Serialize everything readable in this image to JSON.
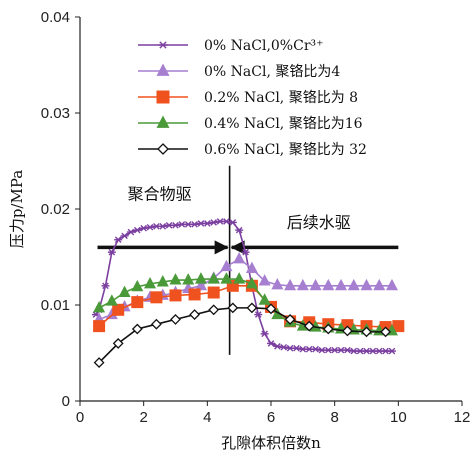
{
  "chart_data": {
    "type": "line",
    "xlabel": "孔隙体积倍数n",
    "ylabel": "压力p/MPa",
    "xlim": [
      0,
      12
    ],
    "ylim": [
      0,
      0.04
    ],
    "xticks": [
      "0",
      "2",
      "4",
      "6",
      "8",
      "10",
      "12"
    ],
    "yticks": [
      "0",
      "0.01",
      "0.02",
      "0.03",
      "0.04"
    ],
    "grid": false,
    "legend_position": "top-right",
    "series": [
      {
        "name": "0% NaCl,0%Cr³⁺",
        "color": "#7b3fa0",
        "marker": "star",
        "x": [
          0.5,
          0.6,
          0.8,
          1.0,
          1.2,
          1.4,
          1.6,
          1.8,
          2.0,
          2.2,
          2.4,
          2.6,
          2.8,
          3.0,
          3.2,
          3.4,
          3.6,
          3.8,
          4.0,
          4.2,
          4.4,
          4.6,
          4.8,
          5.0,
          5.2,
          5.4,
          5.6,
          5.8,
          6.0,
          6.2,
          6.4,
          6.6,
          6.8,
          7.0,
          7.2,
          7.4,
          7.6,
          7.8,
          8.0,
          8.2,
          8.4,
          8.6,
          8.8,
          9.0,
          9.2,
          9.4,
          9.6,
          9.8
        ],
        "y": [
          0.009,
          0.0095,
          0.012,
          0.0155,
          0.0168,
          0.0172,
          0.0176,
          0.0178,
          0.018,
          0.0181,
          0.0182,
          0.0182,
          0.0183,
          0.0183,
          0.0184,
          0.0184,
          0.0184,
          0.0185,
          0.0185,
          0.0186,
          0.0187,
          0.0187,
          0.0186,
          0.0178,
          0.0155,
          0.012,
          0.009,
          0.007,
          0.006,
          0.0057,
          0.0056,
          0.0055,
          0.0055,
          0.0054,
          0.0054,
          0.0054,
          0.0053,
          0.0053,
          0.0053,
          0.0053,
          0.0053,
          0.0052,
          0.0052,
          0.0052,
          0.0052,
          0.0052,
          0.0052,
          0.0052
        ]
      },
      {
        "name": "0% NaCl, 聚铬比为4",
        "color": "#a77fd0",
        "marker": "triangle",
        "x": [
          0.6,
          1.0,
          1.4,
          1.8,
          2.2,
          2.6,
          3.0,
          3.4,
          3.8,
          4.2,
          4.6,
          5.0,
          5.4,
          5.8,
          6.2,
          6.6,
          7.0,
          7.4,
          7.8,
          8.2,
          8.6,
          9.0,
          9.4,
          9.8
        ],
        "y": [
          0.0085,
          0.009,
          0.0098,
          0.0104,
          0.0108,
          0.011,
          0.0113,
          0.0117,
          0.012,
          0.0128,
          0.014,
          0.0148,
          0.0138,
          0.0125,
          0.0121,
          0.012,
          0.012,
          0.012,
          0.012,
          0.012,
          0.012,
          0.012,
          0.012,
          0.012
        ]
      },
      {
        "name": "0.2% NaCl, 聚铬比为 8",
        "color": "#f0521f",
        "marker": "square",
        "x": [
          0.6,
          1.2,
          1.8,
          2.4,
          3.0,
          3.6,
          4.2,
          4.8,
          5.4,
          6.0,
          6.6,
          7.2,
          7.8,
          8.4,
          9.0,
          9.6,
          10.0
        ],
        "y": [
          0.0078,
          0.0095,
          0.0103,
          0.0108,
          0.011,
          0.0111,
          0.0113,
          0.012,
          0.012,
          0.0098,
          0.0083,
          0.0082,
          0.008,
          0.0079,
          0.0078,
          0.0077,
          0.0078
        ]
      },
      {
        "name": "0.4% NaCl, 聚铬比为16",
        "color": "#4a9a3a",
        "marker": "triangle",
        "x": [
          0.6,
          1.0,
          1.4,
          1.8,
          2.2,
          2.6,
          3.0,
          3.4,
          3.8,
          4.2,
          4.6,
          5.0,
          5.4,
          5.8,
          6.2,
          6.6,
          7.0,
          7.4,
          7.8,
          8.2,
          8.6,
          9.0,
          9.4,
          9.8
        ],
        "y": [
          0.0097,
          0.0104,
          0.0113,
          0.0119,
          0.0122,
          0.0124,
          0.0126,
          0.0126,
          0.0127,
          0.0127,
          0.0127,
          0.0127,
          0.0122,
          0.0105,
          0.009,
          0.0082,
          0.0078,
          0.0077,
          0.0076,
          0.0075,
          0.0074,
          0.0074,
          0.0073,
          0.0073
        ]
      },
      {
        "name": "0.6% NaCl, 聚铬比为 32",
        "color": "#111111",
        "marker": "diamond",
        "x": [
          0.6,
          1.2,
          1.8,
          2.4,
          3.0,
          3.6,
          4.2,
          4.8,
          5.4,
          6.0,
          6.6,
          7.2,
          7.8,
          8.4,
          9.0,
          9.6
        ],
        "y": [
          0.004,
          0.006,
          0.0075,
          0.008,
          0.0085,
          0.009,
          0.0095,
          0.0097,
          0.0097,
          0.0096,
          0.0085,
          0.0078,
          0.0075,
          0.0073,
          0.0072,
          0.0072
        ]
      }
    ],
    "annotations": [
      {
        "text": "聚合物驱",
        "x": 2.5,
        "y": 0.021
      },
      {
        "text": "后续水驱",
        "x": 7.5,
        "y": 0.018
      }
    ],
    "marker_line": {
      "x": 4.7,
      "y_from": 0.0048,
      "y_to": 0.0245
    },
    "arrow": {
      "y": 0.016,
      "x_from": 0.55,
      "x_to": 10.0,
      "meet_x": 4.7
    }
  }
}
